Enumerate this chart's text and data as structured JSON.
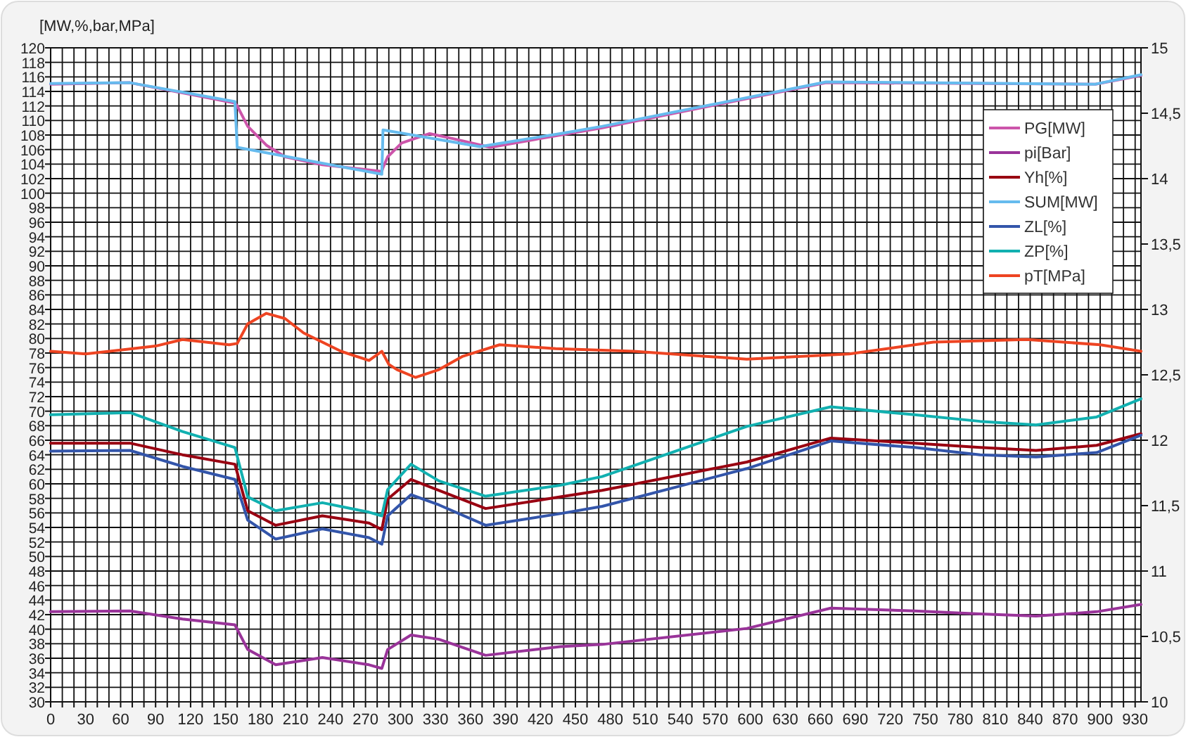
{
  "chart_data": {
    "type": "line",
    "ylabel": "[MW,%,bar,MPa]",
    "xlim": [
      0,
      935
    ],
    "xticks": [
      0,
      {
        "value": 10,
        "label": null
      },
      {
        "value": 20,
        "label": null
      },
      30,
      {
        "value": 40,
        "label": null
      },
      {
        "value": 50,
        "label": null
      },
      60,
      {
        "value": 70,
        "label": null
      },
      {
        "value": 80,
        "label": null
      },
      90,
      {
        "value": 100,
        "label": null
      },
      {
        "value": 110,
        "label": null
      },
      120,
      {
        "value": 130,
        "label": null
      },
      {
        "value": 140,
        "label": null
      },
      150,
      {
        "value": 160,
        "label": null
      },
      {
        "value": 170,
        "label": null
      },
      180,
      {
        "value": 190,
        "label": null
      },
      {
        "value": 200,
        "label": null
      },
      210,
      {
        "value": 220,
        "label": null
      },
      {
        "value": 230,
        "label": null
      },
      240,
      {
        "value": 250,
        "label": null
      },
      {
        "value": 260,
        "label": null
      },
      270,
      {
        "value": 280,
        "label": null
      },
      {
        "value": 290,
        "label": null
      },
      300,
      {
        "value": 310,
        "label": null
      },
      {
        "value": 320,
        "label": null
      },
      330,
      {
        "value": 340,
        "label": null
      },
      {
        "value": 350,
        "label": null
      },
      360,
      {
        "value": 370,
        "label": null
      },
      {
        "value": 380,
        "label": null
      },
      390,
      {
        "value": 400,
        "label": null
      },
      {
        "value": 410,
        "label": null
      },
      420,
      {
        "value": 430,
        "label": null
      },
      {
        "value": 440,
        "label": null
      },
      450,
      {
        "value": 460,
        "label": null
      },
      {
        "value": 470,
        "label": null
      },
      480,
      {
        "value": 490,
        "label": null
      },
      {
        "value": 500,
        "label": null
      },
      510,
      {
        "value": 520,
        "label": null
      },
      {
        "value": 530,
        "label": null
      },
      540,
      {
        "value": 550,
        "label": null
      },
      {
        "value": 560,
        "label": null
      },
      570,
      {
        "value": 580,
        "label": null
      },
      {
        "value": 590,
        "label": null
      },
      600,
      {
        "value": 610,
        "label": null
      },
      {
        "value": 620,
        "label": null
      },
      630,
      {
        "value": 640,
        "label": null
      },
      {
        "value": 650,
        "label": null
      },
      660,
      {
        "value": 670,
        "label": null
      },
      {
        "value": 680,
        "label": null
      },
      690,
      {
        "value": 700,
        "label": null
      },
      {
        "value": 710,
        "label": null
      },
      720,
      {
        "value": 730,
        "label": null
      },
      {
        "value": 740,
        "label": null
      },
      750,
      {
        "value": 760,
        "label": null
      },
      {
        "value": 770,
        "label": null
      },
      780,
      {
        "value": 790,
        "label": null
      },
      {
        "value": 800,
        "label": null
      },
      810,
      {
        "value": 820,
        "label": null
      },
      {
        "value": 830,
        "label": null
      },
      840,
      {
        "value": 850,
        "label": null
      },
      {
        "value": 860,
        "label": null
      },
      870,
      {
        "value": 880,
        "label": null
      },
      {
        "value": 890,
        "label": null
      },
      900,
      {
        "value": 910,
        "label": null
      },
      {
        "value": 920,
        "label": null
      },
      930
    ],
    "ylim": [
      30,
      120
    ],
    "yticks": [
      30,
      32,
      34,
      36,
      38,
      40,
      42,
      44,
      46,
      48,
      50,
      52,
      54,
      56,
      58,
      60,
      62,
      64,
      66,
      68,
      70,
      72,
      74,
      76,
      78,
      80,
      82,
      84,
      86,
      88,
      90,
      92,
      94,
      96,
      98,
      100,
      102,
      104,
      106,
      108,
      110,
      112,
      114,
      116,
      118,
      120
    ],
    "y2lim": [
      10,
      15
    ],
    "y2ticks": [
      10,
      {
        "value": 10.5,
        "label": "10,5"
      },
      11,
      {
        "value": 11.5,
        "label": "11,5"
      },
      12,
      {
        "value": 12.5,
        "label": "12,5"
      },
      13,
      {
        "value": 13.5,
        "label": "13,5"
      },
      14,
      {
        "value": 14.5,
        "label": "14,5"
      },
      15
    ],
    "grid": true,
    "legend": "top right",
    "marker": "none",
    "line_style": "solid",
    "series": [
      {
        "name": "PG[MW]",
        "color": "#cc55aa",
        "x": [
          0,
          68,
          158,
          160,
          169,
          185,
          201,
          233,
          284,
          285,
          289,
          301,
          325,
          345,
          377,
          437,
          473,
          665,
          896,
          935
        ],
        "values": [
          115.0,
          115.2,
          112.4,
          112.0,
          109.2,
          106.6,
          105.0,
          103.9,
          103.0,
          103.5,
          105.0,
          106.9,
          108.2,
          107.5,
          106.3,
          108.0,
          109.0,
          115.2,
          115.0,
          116.2
        ]
      },
      {
        "name": "pi[Bar]",
        "color": "#993399",
        "x": [
          0,
          68,
          113,
          158,
          169,
          193,
          233,
          273,
          284,
          289,
          309,
          333,
          373,
          437,
          473,
          597,
          669,
          741,
          797,
          845,
          897,
          935
        ],
        "values": [
          42.4,
          42.5,
          41.4,
          40.6,
          37.2,
          35.1,
          36.1,
          35.1,
          34.6,
          37.2,
          39.2,
          38.6,
          36.4,
          37.6,
          37.9,
          40.1,
          42.9,
          42.5,
          42.1,
          41.8,
          42.4,
          43.4
        ]
      },
      {
        "name": "Yh[%]",
        "color": "#990011",
        "x": [
          0,
          68,
          113,
          158,
          169,
          193,
          233,
          273,
          284,
          289,
          309,
          333,
          373,
          437,
          473,
          597,
          669,
          741,
          797,
          845,
          897,
          935
        ],
        "values": [
          65.6,
          65.6,
          64.0,
          62.7,
          56.3,
          54.3,
          55.6,
          54.6,
          53.7,
          57.9,
          60.6,
          59.1,
          56.6,
          58.2,
          59.1,
          63.0,
          66.3,
          65.6,
          65.0,
          64.6,
          65.3,
          66.9
        ]
      },
      {
        "name": "SUM[MW]",
        "color": "#66bbee",
        "x": [
          0,
          68,
          158,
          160,
          284,
          285,
          368,
          437,
          473,
          665,
          896,
          935
        ],
        "values": [
          115.1,
          115.2,
          112.6,
          106.3,
          102.6,
          108.7,
          106.4,
          108.2,
          109.2,
          115.3,
          115.0,
          116.3
        ]
      },
      {
        "name": "ZL[%]",
        "color": "#3355aa",
        "x": [
          0,
          68,
          113,
          158,
          169,
          193,
          233,
          273,
          284,
          289,
          309,
          333,
          373,
          437,
          473,
          597,
          669,
          741,
          797,
          845,
          897,
          935
        ],
        "values": [
          64.5,
          64.6,
          62.4,
          60.6,
          55.0,
          52.4,
          53.8,
          52.6,
          51.7,
          55.6,
          58.5,
          57.1,
          54.3,
          55.9,
          56.9,
          62.1,
          65.9,
          65.0,
          64.0,
          63.7,
          64.3,
          66.7
        ]
      },
      {
        "name": "ZP[%]",
        "color": "#11b0b0",
        "x": [
          0,
          68,
          113,
          158,
          169,
          193,
          233,
          273,
          284,
          289,
          309,
          333,
          373,
          437,
          473,
          597,
          669,
          741,
          797,
          845,
          897,
          935
        ],
        "values": [
          69.5,
          69.8,
          67.2,
          65.0,
          58.2,
          56.3,
          57.4,
          56.1,
          55.6,
          59.2,
          62.7,
          60.4,
          58.3,
          59.8,
          61.0,
          67.9,
          70.6,
          69.5,
          68.6,
          68.1,
          69.2,
          71.7
        ]
      },
      {
        "name": "pT[MPa]",
        "color": "#ee4422",
        "axis": "y2",
        "x": [
          0,
          30,
          60,
          90,
          113,
          153,
          160,
          169,
          185,
          201,
          217,
          249,
          273,
          284,
          290,
          297,
          313,
          333,
          353,
          385,
          433,
          500,
          597,
          685,
          757,
          837,
          900,
          935
        ],
        "values": [
          12.68,
          12.66,
          12.69,
          12.72,
          12.77,
          12.73,
          12.74,
          12.89,
          12.97,
          12.93,
          12.82,
          12.68,
          12.61,
          12.68,
          12.58,
          12.54,
          12.48,
          12.54,
          12.64,
          12.73,
          12.7,
          12.68,
          12.62,
          12.66,
          12.75,
          12.77,
          12.73,
          12.68
        ]
      }
    ]
  }
}
